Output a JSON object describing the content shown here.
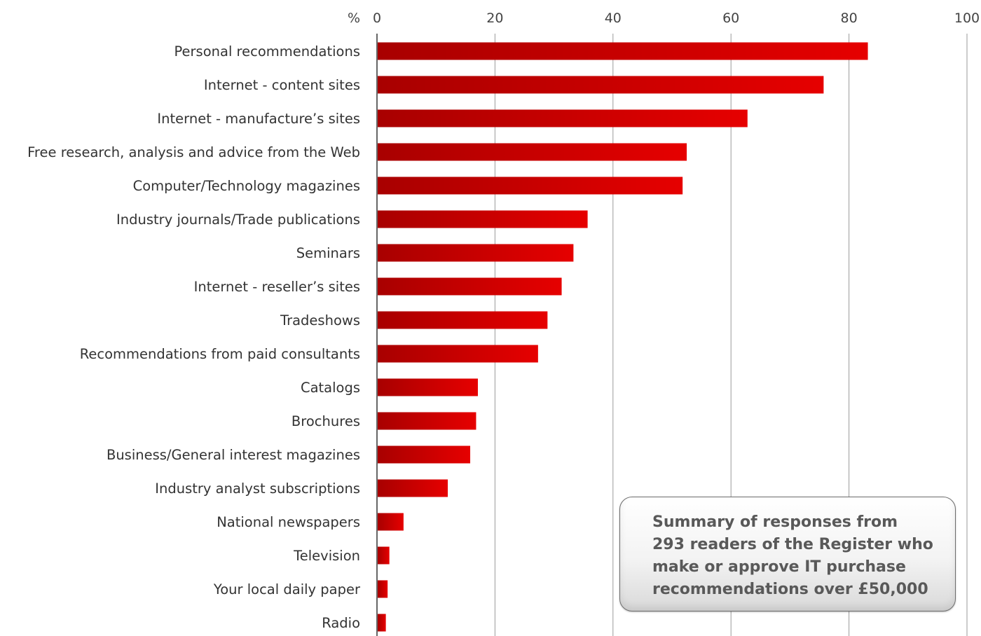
{
  "chart_data": {
    "type": "bar",
    "orientation": "horizontal",
    "unit_label": "%",
    "xlim": [
      0,
      100
    ],
    "ticks": [
      0,
      20,
      40,
      60,
      80,
      100
    ],
    "grid": true,
    "bar_color": "#e60000",
    "bar_color_dark": "#a80000",
    "categories": [
      "Personal recommendations",
      "Internet - content sites",
      "Internet - manufacture’s sites",
      "Free research, analysis and advice from the Web",
      "Computer/Technology magazines",
      "Industry journals/Trade publications",
      "Seminars",
      "Internet - reseller’s sites",
      "Tradeshows",
      "Recommendations from paid consultants",
      "Catalogs",
      "Brochures",
      "Business/General interest magazines",
      "Industry analyst subscriptions",
      "National newspapers",
      "Television",
      "Your local daily paper",
      "Radio"
    ],
    "values": [
      83.2,
      75.7,
      62.8,
      52.5,
      51.8,
      35.7,
      33.3,
      31.3,
      28.9,
      27.3,
      17.1,
      16.8,
      15.8,
      12.0,
      4.5,
      2.1,
      1.8,
      1.5
    ]
  },
  "annotation": {
    "text": "Summary of responses from\n293 readers of the Register  who\nmake or approve IT purchase\nrecommendations over £50,000"
  }
}
